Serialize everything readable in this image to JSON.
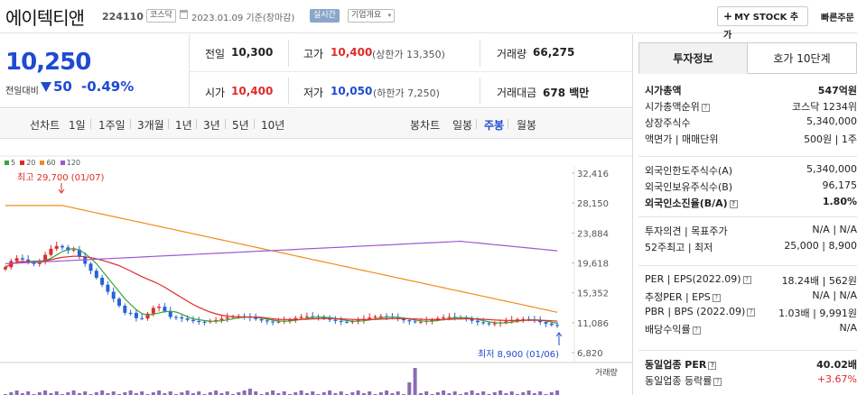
{
  "header": {
    "name": "에이텍티앤",
    "code": "224110",
    "market_badge": "코스닥",
    "date_text": "2023.01.09  기준(장마감)",
    "realtime_badge": "실시간",
    "company_overview": "기업개요",
    "mystock_label": "MY STOCK 추가",
    "quick_order": "빠른주문"
  },
  "price": {
    "current": "10,250",
    "change_label": "전일대비",
    "change_value": "50",
    "change_pct": "-0.49%",
    "prev_close_label": "전일",
    "prev_close": "10,300",
    "high_label": "고가",
    "high": "10,400",
    "upper_limit": "(상한가 13,350)",
    "volume_label": "거래량",
    "volume": "66,275",
    "open_label": "시가",
    "open": "10,400",
    "low_label": "저가",
    "low": "10,050",
    "lower_limit": "(하한가 7,250)",
    "amount_label": "거래대금",
    "amount": "678 백만"
  },
  "chart_tabs": {
    "line_chart": "선차트",
    "periods": [
      "1일",
      "1주일",
      "3개월",
      "1년",
      "3년",
      "5년",
      "10년"
    ],
    "candle_chart": "봉차트",
    "candle_periods": [
      "일봉",
      "주봉",
      "월봉"
    ],
    "active_candle": "주봉"
  },
  "chart_data": {
    "type": "candlestick",
    "legend": [
      {
        "name": "5",
        "color": "#3ba23b"
      },
      {
        "name": "20",
        "color": "#e02a2a"
      },
      {
        "name": "60",
        "color": "#f08c1c"
      },
      {
        "name": "120",
        "color": "#9b59d0"
      }
    ],
    "yticks": [
      32416,
      28150,
      23884,
      19618,
      15352,
      11086,
      6820
    ],
    "ylim": [
      6820,
      32416
    ],
    "high_annotation": "최고 29,700 (01/07)",
    "low_annotation": "최저 8,900 (01/06)",
    "volume_label": "거래량",
    "colors": {
      "up": "#e02a2a",
      "down": "#2563d6"
    }
  },
  "invest": {
    "tab_info": "투자정보",
    "tab_orderbook": "호가 10단계",
    "rows": [
      {
        "label": "시가총액",
        "value": "547억원",
        "bold": true
      },
      {
        "label": "시가총액순위",
        "value": "코스닥 1234위",
        "icon": true
      },
      {
        "label": "상장주식수",
        "value": "5,340,000"
      },
      {
        "label": "액면가 | 매매단위",
        "value": "500원 | 1주"
      }
    ],
    "foreign_rows": [
      {
        "label": "외국인한도주식수(A)",
        "value": "5,340,000"
      },
      {
        "label": "외국인보유주식수(B)",
        "value": "96,175"
      },
      {
        "label": "외국인소진율(B/A)",
        "value": "1.80%",
        "bold": true,
        "icon": true
      }
    ],
    "opinion_rows": [
      {
        "label": "투자의견 | 목표주가",
        "value": "N/A | N/A"
      },
      {
        "label": "52주최고 | 최저",
        "value": "25,000 | 8,900"
      }
    ],
    "per_rows": [
      {
        "label": "PER | EPS(2022.09)",
        "value": "18.24배 | 562원",
        "icon": true
      },
      {
        "label": "추정PER | EPS",
        "value": "N/A | N/A",
        "icon": true
      },
      {
        "label": "PBR | BPS (2022.09)",
        "value": "1.03배 | 9,991원",
        "icon": true
      },
      {
        "label": "배당수익률",
        "value": "N/A",
        "icon": true
      }
    ],
    "sector_rows": [
      {
        "label": "동일업종 PER",
        "value": "40.02배",
        "bold": true,
        "icon": true
      },
      {
        "label": "동일업종 등락률",
        "value": "+3.67%",
        "red": true,
        "icon": true
      }
    ]
  }
}
